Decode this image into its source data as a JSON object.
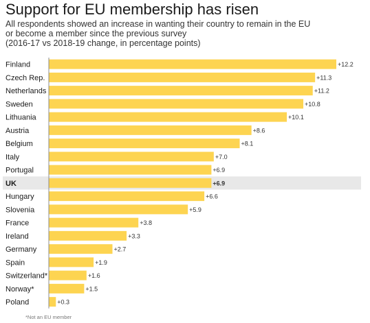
{
  "chart_data": {
    "type": "bar",
    "orientation": "horizontal",
    "title": "Support for EU membership has risen",
    "subtitle_lines": [
      "All respondents showed an increase in wanting their country to remain in the EU",
      "or become a member since the previous survey",
      "(2016-17 vs 2018-19 change, in percentage points)"
    ],
    "categories": [
      "Finland",
      "Czech Rep.",
      "Netherlands",
      "Sweden",
      "Lithuania",
      "Austria",
      "Belgium",
      "Italy",
      "Portugal",
      "UK",
      "Hungary",
      "Slovenia",
      "France",
      "Ireland",
      "Germany",
      "Spain",
      "Switzerland*",
      "Norway*",
      "Poland"
    ],
    "values": [
      12.2,
      11.3,
      11.2,
      10.8,
      10.1,
      8.6,
      8.1,
      7.0,
      6.9,
      6.9,
      6.6,
      5.9,
      3.8,
      3.3,
      2.7,
      1.9,
      1.6,
      1.5,
      0.3
    ],
    "value_labels": [
      "+12.2",
      "+11.3",
      "+11.2",
      "+10.8",
      "+10.1",
      "+8.6",
      "+8.1",
      "+7.0",
      "+6.9",
      "+6.9",
      "+6.6",
      "+5.9",
      "+3.8",
      "+3.3",
      "+2.7",
      "+1.9",
      "+1.6",
      "+1.5",
      "+0.3"
    ],
    "highlight": "UK",
    "xlim": [
      0,
      12.2
    ],
    "grid": false,
    "bar_color": "#fdd451",
    "highlight_row_color": "#e8e8e8",
    "footnote": "*Not an EU member"
  }
}
